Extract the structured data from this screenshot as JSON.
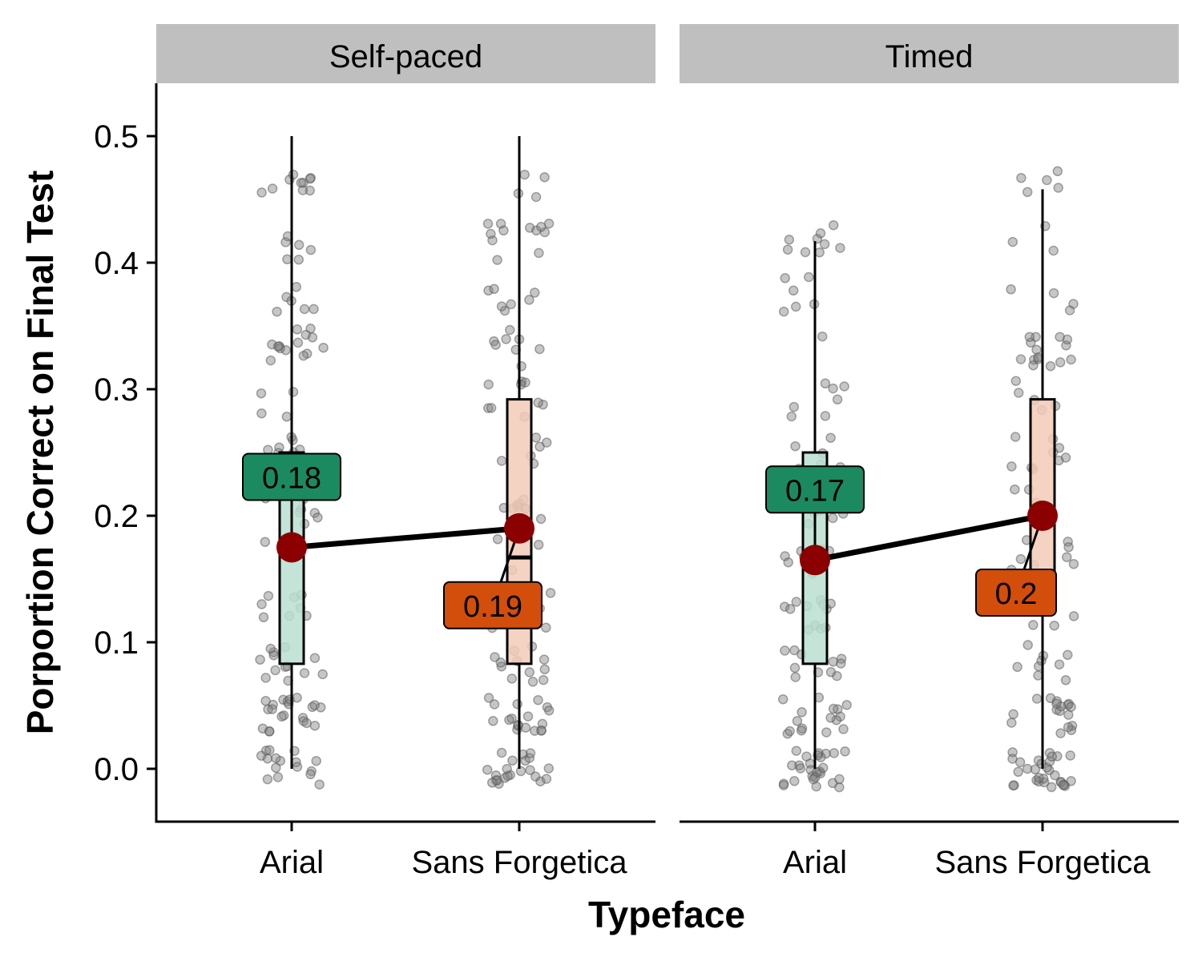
{
  "chart_data": {
    "type": "box",
    "xlabel": "Typeface",
    "ylabel": "Porportion Correct on Final Test",
    "ylim": [
      -0.04,
      0.54
    ],
    "yticks": [
      0.0,
      0.1,
      0.2,
      0.3,
      0.4,
      0.5
    ],
    "ytick_labels": [
      "0.0",
      "0.1",
      "0.2",
      "0.3",
      "0.4",
      "0.5"
    ],
    "categories": [
      "Arial",
      "Sans Forgetica"
    ],
    "grid": false,
    "legend": "none",
    "colors": {
      "Arial_fill": "#b9dfd0",
      "Arial_label": "#1b8a60",
      "Sans Forgetica_fill": "#f3cbb7",
      "Sans Forgetica_label": "#d24e0a",
      "mean_point": "#8b0000",
      "strip_bg": "#bfbfbf",
      "jitter": "#808080"
    },
    "panels": [
      {
        "name": "Self-paced",
        "boxes": [
          {
            "category": "Arial",
            "whisker_low": 0.0,
            "q1": 0.083,
            "median": 0.175,
            "q3": 0.25,
            "whisker_high": 0.5
          },
          {
            "category": "Sans Forgetica",
            "whisker_low": 0.0,
            "q1": 0.083,
            "median": 0.167,
            "q3": 0.292,
            "whisker_high": 0.5
          }
        ],
        "means": [
          {
            "category": "Arial",
            "value": 0.175,
            "label": "0.18"
          },
          {
            "category": "Sans Forgetica",
            "value": 0.19,
            "label": "0.19"
          }
        ]
      },
      {
        "name": "Timed",
        "boxes": [
          {
            "category": "Arial",
            "whisker_low": 0.0,
            "q1": 0.083,
            "median": 0.167,
            "q3": 0.25,
            "whisker_high": 0.417
          },
          {
            "category": "Sans Forgetica",
            "whisker_low": 0.0,
            "q1": 0.125,
            "median": 0.2,
            "q3": 0.292,
            "whisker_high": 0.458
          }
        ],
        "means": [
          {
            "category": "Arial",
            "value": 0.165,
            "label": "0.17"
          },
          {
            "category": "Sans Forgetica",
            "value": 0.2,
            "label": "0.2"
          }
        ]
      }
    ]
  }
}
